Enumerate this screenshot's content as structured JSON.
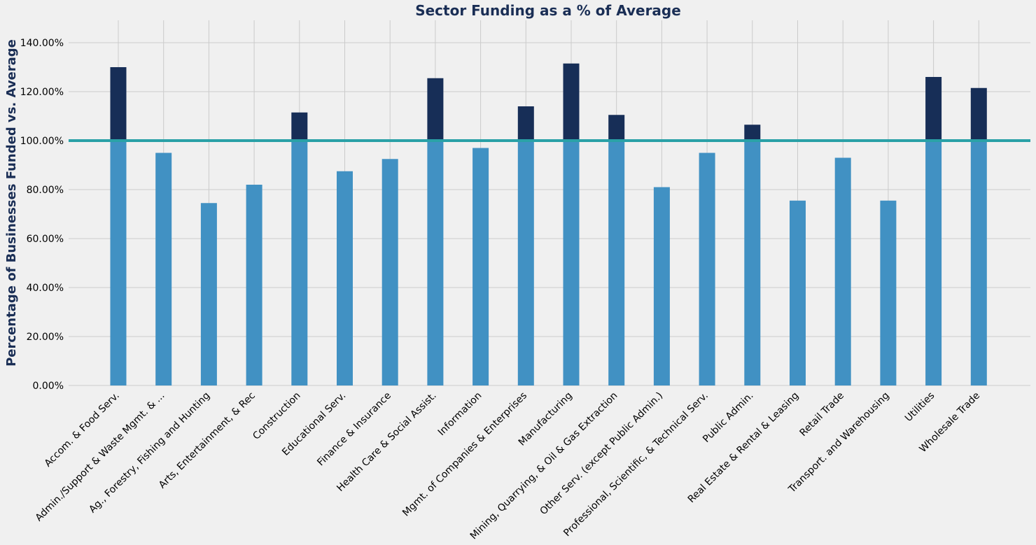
{
  "chart_data": {
    "type": "bar",
    "title": "Sector Funding as a % of Average",
    "xlabel": "",
    "ylabel": "Percentage of Businesses Funded vs. Average",
    "ylim": [
      0,
      1.5
    ],
    "yticks": [
      0,
      0.2,
      0.4,
      0.6,
      0.8,
      1.0,
      1.2,
      1.4
    ],
    "ytick_labels": [
      "0.00%",
      "20.00%",
      "40.00%",
      "60.00%",
      "80.00%",
      "100.00%",
      "120.00%",
      "140.00%"
    ],
    "reference_line": 1.0,
    "grid": true,
    "categories": [
      "Accom. & Food Serv.",
      "Admin./Support & Waste Mgmt. & ...",
      "Ag., Forestry, Fishing and Hunting",
      "Arts, Entertainment, & Rec",
      "Construction",
      "Educational Serv.",
      "Finance & Insurance",
      "Health Care & Social Assist.",
      "Information",
      "Mgmt. of Companies & Enterprises",
      "Manufacturing",
      "Mining, Quarrying, & Oil & Gas Extraction",
      "Other Serv. (except Public Admin.)",
      "Professional, Scientific, & Technical Serv.",
      "Public Admin.",
      "Real Estate & Rental & Leasing",
      "Retail Trade",
      "Transport. and Warehousing",
      "Utilities",
      "Wholesale Trade"
    ],
    "values": [
      1.3,
      0.95,
      0.745,
      0.82,
      1.115,
      0.875,
      0.925,
      1.255,
      0.97,
      1.14,
      1.315,
      1.105,
      0.81,
      0.95,
      1.065,
      0.755,
      0.93,
      0.755,
      1.26,
      1.215
    ],
    "colors": {
      "below_average": "#4191c3",
      "above_average": "#172e57",
      "reference_line": "#2aa1a7",
      "grid": "#cbcbcb",
      "background": "#f0f0f0"
    }
  }
}
